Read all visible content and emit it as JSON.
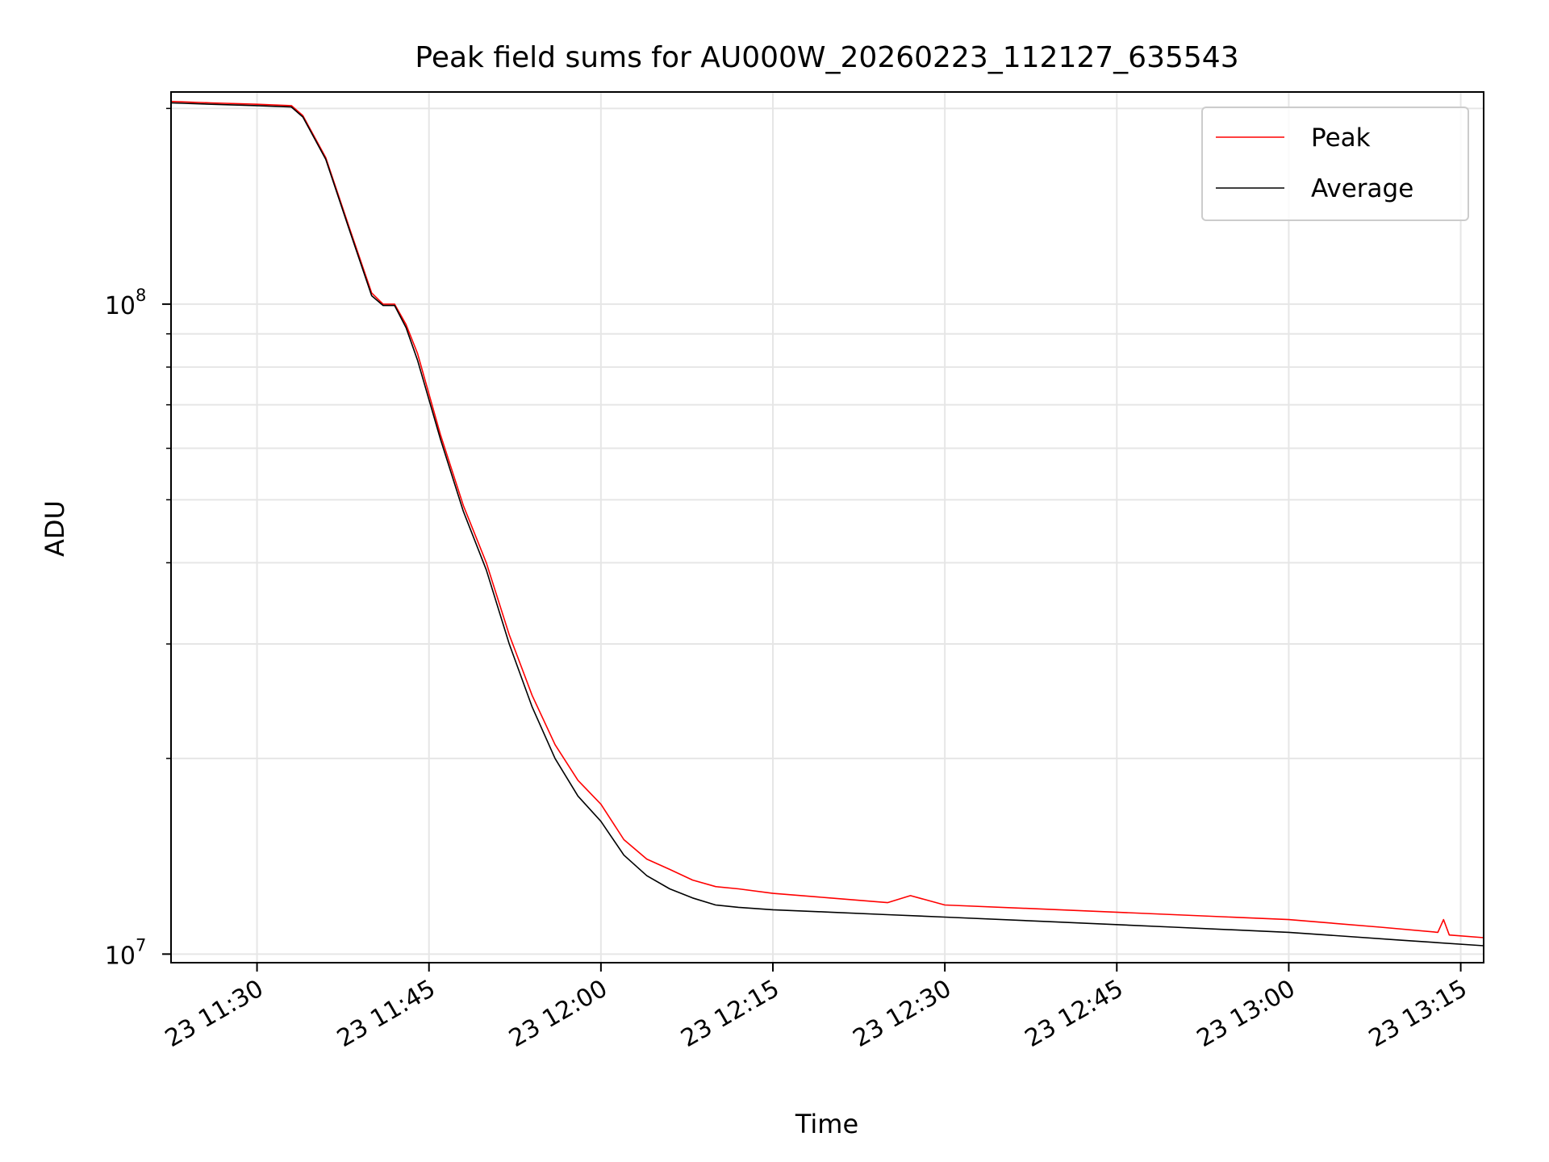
{
  "chart_data": {
    "type": "line",
    "title": "Peak field sums for AU000W_20260223_112127_635543",
    "xlabel": "Time",
    "ylabel": "ADU",
    "yscale": "log",
    "ylim": [
      9700000,
      212000000
    ],
    "xlim": [
      "2026-02-23 11:22:30",
      "2026-02-23 13:17:00"
    ],
    "x_ticks": [
      "2026-02-23 11:30:00",
      "2026-02-23 11:45:00",
      "2026-02-23 12:00:00",
      "2026-02-23 12:15:00",
      "2026-02-23 12:30:00",
      "2026-02-23 12:45:00",
      "2026-02-23 13:00:00",
      "2026-02-23 13:15:00"
    ],
    "x_tick_labels": [
      "23 11:30",
      "23 11:45",
      "23 12:00",
      "23 12:15",
      "23 12:30",
      "23 12:45",
      "23 13:00",
      "23 13:15"
    ],
    "y_major_ticks": [
      10000000,
      100000000
    ],
    "y_tick_labels": [
      {
        "base": "10",
        "exp": "7"
      },
      {
        "base": "10",
        "exp": "8"
      }
    ],
    "grid": true,
    "legend_position": "top-right",
    "series": [
      {
        "name": "Peak",
        "color": "#ff0000",
        "x": [
          "2026-02-23 11:22:30",
          "2026-02-23 11:26:00",
          "2026-02-23 11:30:00",
          "2026-02-23 11:33:00",
          "2026-02-23 11:34:00",
          "2026-02-23 11:36:00",
          "2026-02-23 11:38:00",
          "2026-02-23 11:40:00",
          "2026-02-23 11:41:00",
          "2026-02-23 11:42:00",
          "2026-02-23 11:43:00",
          "2026-02-23 11:44:00",
          "2026-02-23 11:46:00",
          "2026-02-23 11:48:00",
          "2026-02-23 11:50:00",
          "2026-02-23 11:52:00",
          "2026-02-23 11:54:00",
          "2026-02-23 11:56:00",
          "2026-02-23 11:58:00",
          "2026-02-23 12:00:00",
          "2026-02-23 12:02:00",
          "2026-02-23 12:04:00",
          "2026-02-23 12:06:00",
          "2026-02-23 12:08:00",
          "2026-02-23 12:10:00",
          "2026-02-23 12:12:00",
          "2026-02-23 12:15:00",
          "2026-02-23 12:20:00",
          "2026-02-23 12:25:00",
          "2026-02-23 12:27:00",
          "2026-02-23 12:30:00",
          "2026-02-23 12:40:00",
          "2026-02-23 12:50:00",
          "2026-02-23 13:00:00",
          "2026-02-23 13:08:00",
          "2026-02-23 13:13:00",
          "2026-02-23 13:13:30",
          "2026-02-23 13:14:00",
          "2026-02-23 13:17:00"
        ],
        "values": [
          205000000,
          204000000,
          203000000,
          202000000,
          195000000,
          168000000,
          132000000,
          104000000,
          100000000,
          100000000,
          93000000,
          84000000,
          63000000,
          49000000,
          40000000,
          31000000,
          25000000,
          21000000,
          18500000,
          17000000,
          15000000,
          14000000,
          13500000,
          13000000,
          12700000,
          12600000,
          12400000,
          12200000,
          12000000,
          12300000,
          11900000,
          11700000,
          11500000,
          11300000,
          11000000,
          10800000,
          11300000,
          10700000,
          10600000
        ]
      },
      {
        "name": "Average",
        "color": "#000000",
        "x": [
          "2026-02-23 11:22:30",
          "2026-02-23 11:26:00",
          "2026-02-23 11:30:00",
          "2026-02-23 11:33:00",
          "2026-02-23 11:34:00",
          "2026-02-23 11:36:00",
          "2026-02-23 11:38:00",
          "2026-02-23 11:40:00",
          "2026-02-23 11:41:00",
          "2026-02-23 11:42:00",
          "2026-02-23 11:43:00",
          "2026-02-23 11:44:00",
          "2026-02-23 11:46:00",
          "2026-02-23 11:48:00",
          "2026-02-23 11:50:00",
          "2026-02-23 11:52:00",
          "2026-02-23 11:54:00",
          "2026-02-23 11:56:00",
          "2026-02-23 11:58:00",
          "2026-02-23 12:00:00",
          "2026-02-23 12:02:00",
          "2026-02-23 12:04:00",
          "2026-02-23 12:06:00",
          "2026-02-23 12:08:00",
          "2026-02-23 12:10:00",
          "2026-02-23 12:12:00",
          "2026-02-23 12:15:00",
          "2026-02-23 12:20:00",
          "2026-02-23 12:25:00",
          "2026-02-23 12:30:00",
          "2026-02-23 12:40:00",
          "2026-02-23 12:50:00",
          "2026-02-23 13:00:00",
          "2026-02-23 13:10:00",
          "2026-02-23 13:17:00"
        ],
        "values": [
          204000000,
          203000000,
          202000000,
          201000000,
          194000000,
          167000000,
          131000000,
          103000000,
          99500000,
          99500000,
          92000000,
          82000000,
          62000000,
          48000000,
          39000000,
          30000000,
          24000000,
          20000000,
          17500000,
          16000000,
          14200000,
          13200000,
          12600000,
          12200000,
          11900000,
          11800000,
          11700000,
          11600000,
          11500000,
          11400000,
          11200000,
          11000000,
          10800000,
          10500000,
          10300000
        ]
      }
    ]
  }
}
